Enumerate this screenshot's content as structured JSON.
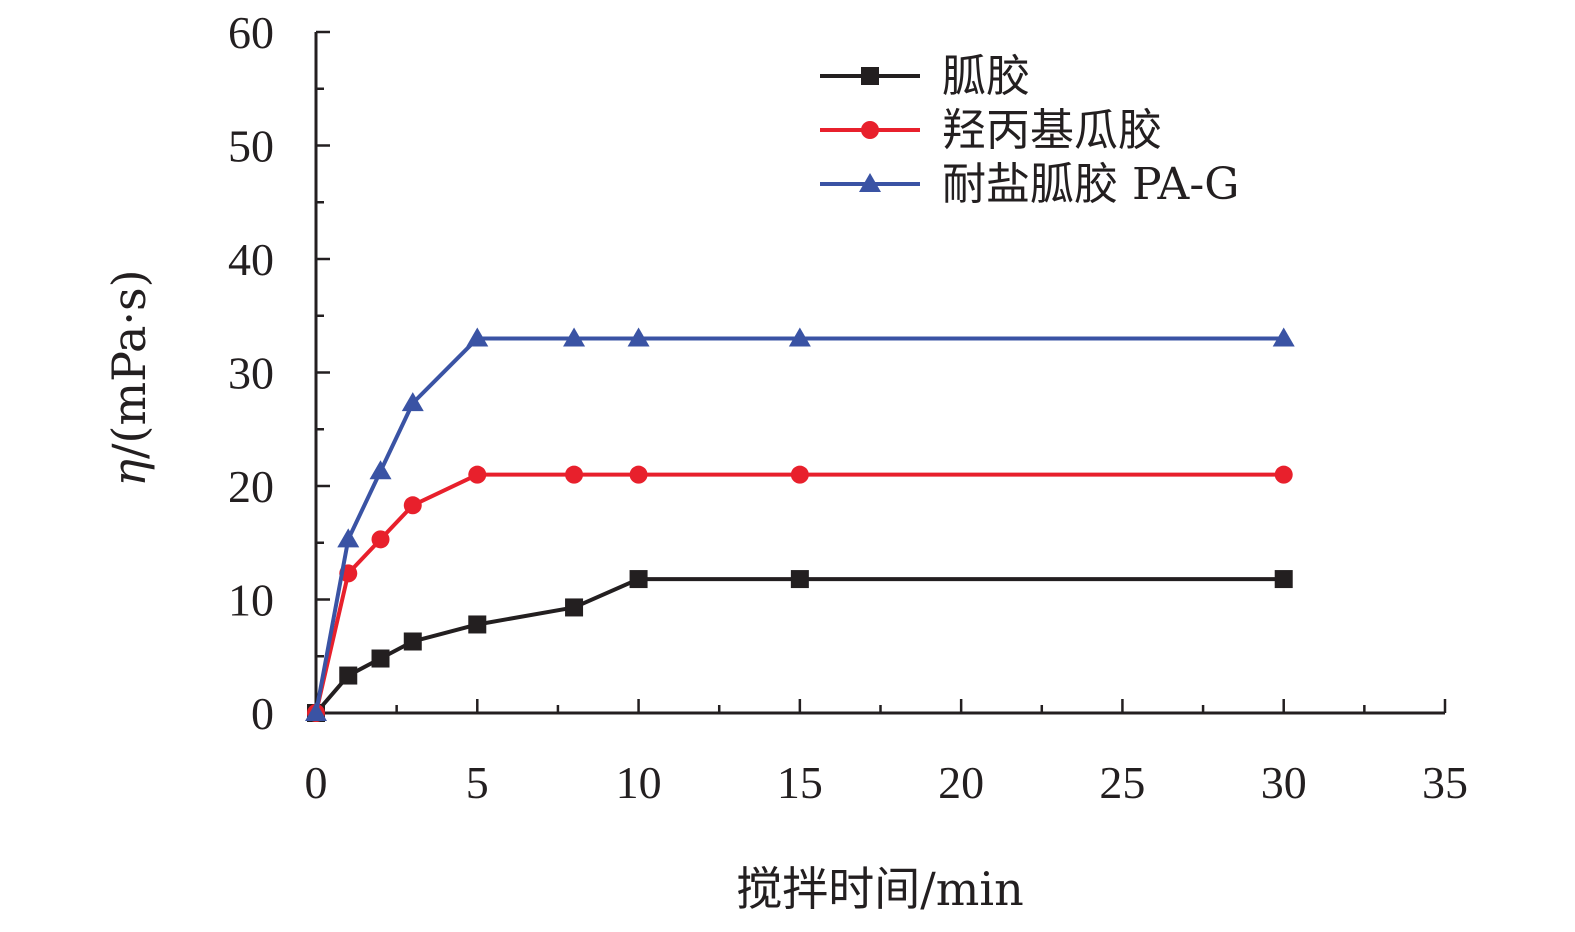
{
  "chart_data": {
    "type": "line",
    "xlabel": "搅拌时间/min",
    "ylabel_symbol": "η",
    "ylabel_unit": "/(mPa·s)",
    "xlim": [
      0,
      35
    ],
    "ylim": [
      0,
      60
    ],
    "xticks": [
      0,
      5,
      10,
      15,
      20,
      25,
      30,
      35
    ],
    "yticks": [
      0,
      10,
      20,
      30,
      40,
      50,
      60
    ],
    "grid": false,
    "legend_position": "top-right",
    "series": [
      {
        "name": "胍胶",
        "color": "#231f20",
        "marker": "square",
        "x": [
          0,
          1,
          2,
          3,
          5,
          8,
          10,
          15,
          30
        ],
        "y": [
          0,
          3.3,
          4.8,
          6.3,
          7.8,
          9.3,
          11.8,
          11.8,
          11.8
        ]
      },
      {
        "name": "羟丙基瓜胶",
        "color": "#e8202c",
        "marker": "circle",
        "x": [
          0,
          1,
          2,
          3,
          5,
          8,
          10,
          15,
          30
        ],
        "y": [
          0,
          12.3,
          15.3,
          18.3,
          21,
          21,
          21,
          21,
          21
        ]
      },
      {
        "name": "耐盐胍胶 PA-G",
        "color": "#3a53a4",
        "marker": "triangle",
        "x": [
          0,
          1,
          2,
          3,
          5,
          8,
          10,
          15,
          30
        ],
        "y": [
          0,
          15.3,
          21.3,
          27.3,
          33,
          33,
          33,
          33,
          33
        ]
      }
    ]
  }
}
